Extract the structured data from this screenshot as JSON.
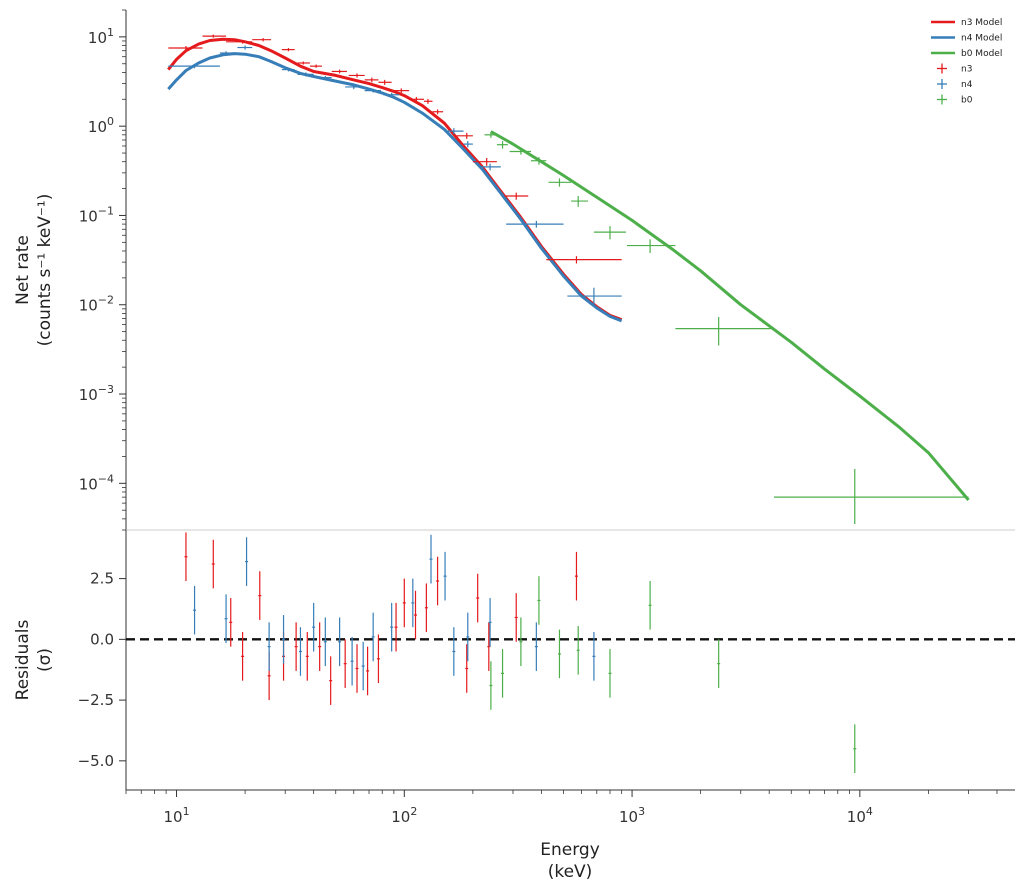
{
  "chart_data": {
    "type": "scatter",
    "panels": [
      {
        "id": "spectrum",
        "ylabel_line1": "Net rate",
        "ylabel_line2": "(counts s⁻¹ keV⁻¹)",
        "yscale": "log",
        "ylim": [
          3e-05,
          20
        ],
        "yticks": [
          0.0001,
          0.001,
          0.01,
          0.1,
          1,
          10
        ],
        "ytick_labels": [
          {
            "base": "10",
            "exp": "−4"
          },
          {
            "base": "10",
            "exp": "−3"
          },
          {
            "base": "10",
            "exp": "−2"
          },
          {
            "base": "10",
            "exp": "−1"
          },
          {
            "base": "10",
            "exp": "0"
          },
          {
            "base": "10",
            "exp": "1"
          }
        ]
      },
      {
        "id": "residuals",
        "ylabel_line1": "Residuals",
        "ylabel_line2": "(σ)",
        "yscale": "linear",
        "ylim": [
          -6.2,
          4.5
        ],
        "yticks": [
          2.5,
          0,
          -2.5,
          -5
        ],
        "ytick_labels": [
          "2.5",
          "0.0",
          "−2.5",
          "−5.0"
        ],
        "zero_line": 0
      }
    ],
    "xscale": "log",
    "xlim": [
      6,
      48000
    ],
    "xticks": [
      10,
      100,
      1000,
      10000
    ],
    "xtick_labels": [
      {
        "base": "10",
        "exp": "1"
      },
      {
        "base": "10",
        "exp": "2"
      },
      {
        "base": "10",
        "exp": "3"
      },
      {
        "base": "10",
        "exp": "4"
      }
    ],
    "xlabel_line1": "Energy",
    "xlabel_line2": "(keV)",
    "legend_position": "top-right",
    "legend": [
      {
        "label": "n3 Model",
        "kind": "line",
        "color": "#e41a1c"
      },
      {
        "label": "n4 Model",
        "kind": "line",
        "color": "#377eb8"
      },
      {
        "label": "b0 Model",
        "kind": "line",
        "color": "#4daf4a"
      },
      {
        "label": "n3",
        "kind": "marker",
        "color": "#e41a1c"
      },
      {
        "label": "n4",
        "kind": "marker",
        "color": "#377eb8"
      },
      {
        "label": "b0",
        "kind": "marker",
        "color": "#4daf4a"
      }
    ],
    "models": [
      {
        "name": "n3 Model",
        "color": "#e41a1c",
        "x": [
          9.2,
          10,
          11,
          12.5,
          14,
          16,
          18,
          20,
          23,
          26,
          30,
          35,
          40,
          50,
          60,
          70,
          80,
          90,
          100,
          120,
          150,
          180,
          220,
          260,
          320,
          400,
          500,
          600,
          700,
          800,
          900
        ],
        "y": [
          4.3,
          5.6,
          7.0,
          8.3,
          9.1,
          9.4,
          9.3,
          8.8,
          8.0,
          7.0,
          5.8,
          4.7,
          4.1,
          3.7,
          3.3,
          3.0,
          2.7,
          2.45,
          2.2,
          1.7,
          1.08,
          0.62,
          0.35,
          0.2,
          0.1,
          0.045,
          0.022,
          0.013,
          0.0095,
          0.0076,
          0.0068
        ]
      },
      {
        "name": "n4 Model",
        "color": "#377eb8",
        "x": [
          9.2,
          10,
          11,
          12.5,
          14,
          16,
          18,
          20,
          23,
          26,
          30,
          35,
          40,
          50,
          60,
          70,
          80,
          90,
          100,
          120,
          150,
          180,
          220,
          260,
          320,
          400,
          500,
          600,
          700,
          800,
          900
        ],
        "y": [
          2.6,
          3.3,
          4.2,
          5.1,
          5.8,
          6.3,
          6.5,
          6.4,
          6.0,
          5.3,
          4.5,
          3.9,
          3.6,
          3.2,
          2.9,
          2.6,
          2.35,
          2.1,
          1.85,
          1.4,
          0.92,
          0.57,
          0.33,
          0.19,
          0.095,
          0.043,
          0.021,
          0.0125,
          0.0092,
          0.0074,
          0.0066
        ]
      },
      {
        "name": "b0 Model",
        "color": "#4daf4a",
        "x": [
          240,
          300,
          400,
          500,
          700,
          1000,
          1500,
          2000,
          3000,
          5000,
          7000,
          10000,
          15000,
          20000,
          30000
        ],
        "y": [
          0.87,
          0.63,
          0.4,
          0.28,
          0.16,
          0.088,
          0.042,
          0.024,
          0.01,
          0.0038,
          0.0019,
          0.00095,
          0.00042,
          0.00022,
          6.5e-05
        ]
      }
    ],
    "data": [
      {
        "name": "n3",
        "color": "#e41a1c",
        "points": [
          {
            "x": 11,
            "xlo": 9.2,
            "xhi": 13,
            "y": 7.5,
            "ylo": 7.1,
            "yhi": 7.9
          },
          {
            "x": 14.5,
            "xlo": 13,
            "xhi": 16.5,
            "y": 10.2,
            "ylo": 9.8,
            "yhi": 10.6
          },
          {
            "x": 19.5,
            "xlo": 16.5,
            "xhi": 21.5,
            "y": 8.8,
            "ylo": 8.4,
            "yhi": 9.2
          },
          {
            "x": 24,
            "xlo": 21.5,
            "xhi": 26,
            "y": 9.3,
            "ylo": 8.9,
            "yhi": 9.7
          },
          {
            "x": 31,
            "xlo": 29,
            "xhi": 33,
            "y": 7.2,
            "ylo": 6.9,
            "yhi": 7.5
          },
          {
            "x": 36,
            "xlo": 34,
            "xhi": 38.5,
            "y": 5.1,
            "ylo": 4.9,
            "yhi": 5.3
          },
          {
            "x": 41,
            "xlo": 38.5,
            "xhi": 43.5,
            "y": 4.7,
            "ylo": 4.5,
            "yhi": 4.9
          },
          {
            "x": 52,
            "xlo": 48,
            "xhi": 56,
            "y": 4.1,
            "ylo": 3.9,
            "yhi": 4.3
          },
          {
            "x": 62,
            "xlo": 57,
            "xhi": 67,
            "y": 3.7,
            "ylo": 3.5,
            "yhi": 3.9
          },
          {
            "x": 72,
            "xlo": 67,
            "xhi": 77,
            "y": 3.3,
            "ylo": 3.1,
            "yhi": 3.5
          },
          {
            "x": 82,
            "xlo": 77,
            "xhi": 88,
            "y": 3.1,
            "ylo": 2.9,
            "yhi": 3.3
          },
          {
            "x": 97,
            "xlo": 90,
            "xhi": 105,
            "y": 2.5,
            "ylo": 2.35,
            "yhi": 2.65
          },
          {
            "x": 113,
            "xlo": 105,
            "xhi": 122,
            "y": 2.0,
            "ylo": 1.88,
            "yhi": 2.12
          },
          {
            "x": 127,
            "xlo": 122,
            "xhi": 133,
            "y": 1.9,
            "ylo": 1.78,
            "yhi": 2.02
          },
          {
            "x": 140,
            "xlo": 133,
            "xhi": 148,
            "y": 1.45,
            "ylo": 1.36,
            "yhi": 1.54
          },
          {
            "x": 188,
            "xlo": 170,
            "xhi": 200,
            "y": 0.78,
            "ylo": 0.72,
            "yhi": 0.84
          },
          {
            "x": 230,
            "xlo": 200,
            "xhi": 255,
            "y": 0.4,
            "ylo": 0.36,
            "yhi": 0.44
          },
          {
            "x": 310,
            "xlo": 275,
            "xhi": 350,
            "y": 0.165,
            "ylo": 0.15,
            "yhi": 0.18
          },
          {
            "x": 570,
            "xlo": 420,
            "xhi": 900,
            "y": 0.032,
            "ylo": 0.029,
            "yhi": 0.035
          }
        ]
      },
      {
        "name": "n4",
        "color": "#377eb8",
        "points": [
          {
            "x": 12,
            "xlo": 9.2,
            "xhi": 15.5,
            "y": 4.7,
            "ylo": 4.45,
            "yhi": 4.95
          },
          {
            "x": 16.5,
            "xlo": 15.5,
            "xhi": 18,
            "y": 6.6,
            "ylo": 6.3,
            "yhi": 6.9
          },
          {
            "x": 20,
            "xlo": 18.5,
            "xhi": 21.5,
            "y": 7.6,
            "ylo": 7.2,
            "yhi": 8.0
          },
          {
            "x": 31,
            "xlo": 29,
            "xhi": 33,
            "y": 4.3,
            "ylo": 4.1,
            "yhi": 4.5
          },
          {
            "x": 37,
            "xlo": 34,
            "xhi": 40,
            "y": 3.8,
            "ylo": 3.6,
            "yhi": 4.0
          },
          {
            "x": 45,
            "xlo": 42,
            "xhi": 48,
            "y": 3.5,
            "ylo": 3.35,
            "yhi": 3.65
          },
          {
            "x": 60,
            "xlo": 55,
            "xhi": 66,
            "y": 2.75,
            "ylo": 2.6,
            "yhi": 2.9
          },
          {
            "x": 73,
            "xlo": 67,
            "xhi": 79,
            "y": 2.5,
            "ylo": 2.38,
            "yhi": 2.62
          },
          {
            "x": 88,
            "xlo": 81,
            "xhi": 95,
            "y": 2.25,
            "ylo": 2.14,
            "yhi": 2.36
          },
          {
            "x": 165,
            "xlo": 150,
            "xhi": 182,
            "y": 0.88,
            "ylo": 0.81,
            "yhi": 0.95
          },
          {
            "x": 190,
            "xlo": 182,
            "xhi": 200,
            "y": 0.63,
            "ylo": 0.58,
            "yhi": 0.68
          },
          {
            "x": 238,
            "xlo": 215,
            "xhi": 265,
            "y": 0.35,
            "ylo": 0.32,
            "yhi": 0.38
          },
          {
            "x": 380,
            "xlo": 280,
            "xhi": 500,
            "y": 0.08,
            "ylo": 0.073,
            "yhi": 0.087
          },
          {
            "x": 680,
            "xlo": 520,
            "xhi": 900,
            "y": 0.0125,
            "ylo": 0.0095,
            "yhi": 0.0155
          }
        ]
      },
      {
        "name": "b0",
        "color": "#4daf4a",
        "points": [
          {
            "x": 240,
            "xlo": 225,
            "xhi": 255,
            "y": 0.8,
            "ylo": 0.74,
            "yhi": 0.86
          },
          {
            "x": 270,
            "xlo": 255,
            "xhi": 285,
            "y": 0.62,
            "ylo": 0.56,
            "yhi": 0.68
          },
          {
            "x": 325,
            "xlo": 290,
            "xhi": 360,
            "y": 0.52,
            "ylo": 0.48,
            "yhi": 0.56
          },
          {
            "x": 390,
            "xlo": 360,
            "xhi": 420,
            "y": 0.41,
            "ylo": 0.37,
            "yhi": 0.45
          },
          {
            "x": 480,
            "xlo": 430,
            "xhi": 540,
            "y": 0.235,
            "ylo": 0.21,
            "yhi": 0.26
          },
          {
            "x": 580,
            "xlo": 540,
            "xhi": 640,
            "y": 0.145,
            "ylo": 0.125,
            "yhi": 0.165
          },
          {
            "x": 800,
            "xlo": 680,
            "xhi": 940,
            "y": 0.065,
            "ylo": 0.054,
            "yhi": 0.076
          },
          {
            "x": 1200,
            "xlo": 950,
            "xhi": 1550,
            "y": 0.046,
            "ylo": 0.038,
            "yhi": 0.054
          },
          {
            "x": 2400,
            "xlo": 1550,
            "xhi": 4200,
            "y": 0.0054,
            "ylo": 0.0035,
            "yhi": 0.0073
          },
          {
            "x": 9500,
            "xlo": 4200,
            "xhi": 30000,
            "y": 7e-05,
            "ylo": 3.5e-05,
            "yhi": 0.000145
          }
        ]
      }
    ],
    "residuals": [
      {
        "name": "n3",
        "color": "#e41a1c",
        "points": [
          {
            "x": 11,
            "y": 3.4,
            "err": 1
          },
          {
            "x": 14.5,
            "y": 3.1,
            "err": 1
          },
          {
            "x": 17.3,
            "y": 0.7,
            "err": 1
          },
          {
            "x": 19.5,
            "y": -0.7,
            "err": 1
          },
          {
            "x": 23.2,
            "y": 1.8,
            "err": 1
          },
          {
            "x": 25.5,
            "y": -1.5,
            "err": 1
          },
          {
            "x": 29.5,
            "y": -0.7,
            "err": 1
          },
          {
            "x": 33.5,
            "y": -0.3,
            "err": 1
          },
          {
            "x": 37.5,
            "y": -0.7,
            "err": 1
          },
          {
            "x": 42.5,
            "y": -0.3,
            "err": 1
          },
          {
            "x": 47.5,
            "y": -1.7,
            "err": 1
          },
          {
            "x": 55,
            "y": -1.0,
            "err": 1
          },
          {
            "x": 62,
            "y": -1.2,
            "err": 1
          },
          {
            "x": 69,
            "y": -1.3,
            "err": 1
          },
          {
            "x": 77,
            "y": -0.8,
            "err": 1
          },
          {
            "x": 92,
            "y": 0.5,
            "err": 1
          },
          {
            "x": 100,
            "y": 1.5,
            "err": 1
          },
          {
            "x": 112,
            "y": 1.0,
            "err": 1
          },
          {
            "x": 125,
            "y": 1.3,
            "err": 1
          },
          {
            "x": 140,
            "y": 2.4,
            "err": 1
          },
          {
            "x": 188,
            "y": -1.2,
            "err": 1
          },
          {
            "x": 210,
            "y": 1.7,
            "err": 1
          },
          {
            "x": 235,
            "y": -0.3,
            "err": 1
          },
          {
            "x": 310,
            "y": 0.9,
            "err": 1
          },
          {
            "x": 570,
            "y": 2.6,
            "err": 1
          }
        ]
      },
      {
        "name": "n4",
        "color": "#377eb8",
        "points": [
          {
            "x": 12,
            "y": 1.2,
            "err": 1
          },
          {
            "x": 16.5,
            "y": 0.85,
            "err": 1
          },
          {
            "x": 20.3,
            "y": 3.2,
            "err": 1
          },
          {
            "x": 25.5,
            "y": -0.3,
            "err": 1
          },
          {
            "x": 29.5,
            "y": 0.0,
            "err": 1
          },
          {
            "x": 35,
            "y": -0.5,
            "err": 1
          },
          {
            "x": 40,
            "y": 0.5,
            "err": 1
          },
          {
            "x": 45,
            "y": -0.1,
            "err": 1
          },
          {
            "x": 52,
            "y": -0.1,
            "err": 1
          },
          {
            "x": 59,
            "y": -0.9,
            "err": 1
          },
          {
            "x": 66,
            "y": -1.1,
            "err": 1
          },
          {
            "x": 73,
            "y": 0.1,
            "err": 1
          },
          {
            "x": 88,
            "y": 0.5,
            "err": 1
          },
          {
            "x": 109,
            "y": 1.5,
            "err": 1
          },
          {
            "x": 131,
            "y": 3.3,
            "err": 1
          },
          {
            "x": 151,
            "y": 2.6,
            "err": 1
          },
          {
            "x": 165,
            "y": -0.5,
            "err": 1
          },
          {
            "x": 190,
            "y": 0.1,
            "err": 1
          },
          {
            "x": 238,
            "y": 0.7,
            "err": 1
          },
          {
            "x": 380,
            "y": -0.3,
            "err": 1
          },
          {
            "x": 680,
            "y": -0.7,
            "err": 1
          }
        ]
      },
      {
        "name": "b0",
        "color": "#4daf4a",
        "points": [
          {
            "x": 240,
            "y": -1.9,
            "err": 1
          },
          {
            "x": 270,
            "y": -1.4,
            "err": 1
          },
          {
            "x": 325,
            "y": -0.1,
            "err": 1
          },
          {
            "x": 390,
            "y": 1.6,
            "err": 1
          },
          {
            "x": 480,
            "y": -0.6,
            "err": 1
          },
          {
            "x": 580,
            "y": -0.45,
            "err": 1
          },
          {
            "x": 800,
            "y": -1.4,
            "err": 1
          },
          {
            "x": 1200,
            "y": 1.4,
            "err": 1
          },
          {
            "x": 2400,
            "y": -1.0,
            "err": 1
          },
          {
            "x": 9500,
            "y": -4.5,
            "err": 1
          }
        ]
      }
    ]
  }
}
